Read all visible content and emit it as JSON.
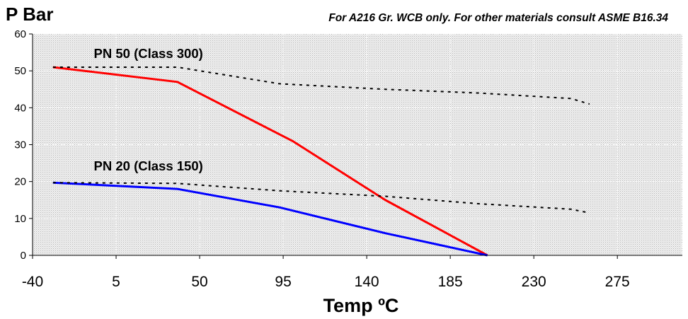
{
  "chart_data": {
    "type": "line",
    "ylabel": "P Bar",
    "note": "For A216 Gr. WCB only. For other materials consult ASME B16.34",
    "xlabel": "Temp ºC",
    "xlim": [
      -40,
      310
    ],
    "ylim": [
      0,
      60
    ],
    "xticks": [
      -40,
      5,
      50,
      95,
      140,
      185,
      230,
      275
    ],
    "yticks": [
      0,
      10,
      20,
      30,
      40,
      50,
      60
    ],
    "grid": true,
    "plot_background": "#e6e6e6",
    "series": [
      {
        "name": "",
        "color": "#ff0000",
        "style": "solid",
        "x": [
          -29,
          38,
          100,
          150,
          205
        ],
        "y": [
          51,
          47,
          31,
          15,
          0
        ]
      },
      {
        "name": "",
        "color": "#0000ff",
        "style": "solid",
        "x": [
          -29,
          38,
          93,
          150,
          205
        ],
        "y": [
          19.7,
          18,
          13,
          6,
          0
        ]
      },
      {
        "name": "",
        "color": "#000000",
        "style": "dotted",
        "x": [
          -29,
          38,
          93,
          150,
          200,
          250,
          260
        ],
        "y": [
          51,
          51,
          46.5,
          45,
          44,
          42.5,
          41
        ]
      },
      {
        "name": "",
        "color": "#000000",
        "style": "dotted",
        "x": [
          -29,
          38,
          93,
          150,
          200,
          250,
          260
        ],
        "y": [
          19.7,
          19.5,
          17.5,
          16,
          14,
          12.5,
          11.5
        ]
      }
    ],
    "annotations": [
      {
        "text": "PN 50 (Class 300)",
        "x": -7,
        "y": 53.5
      },
      {
        "text": "PN 20 (Class 150)",
        "x": -7,
        "y": 23
      }
    ]
  }
}
